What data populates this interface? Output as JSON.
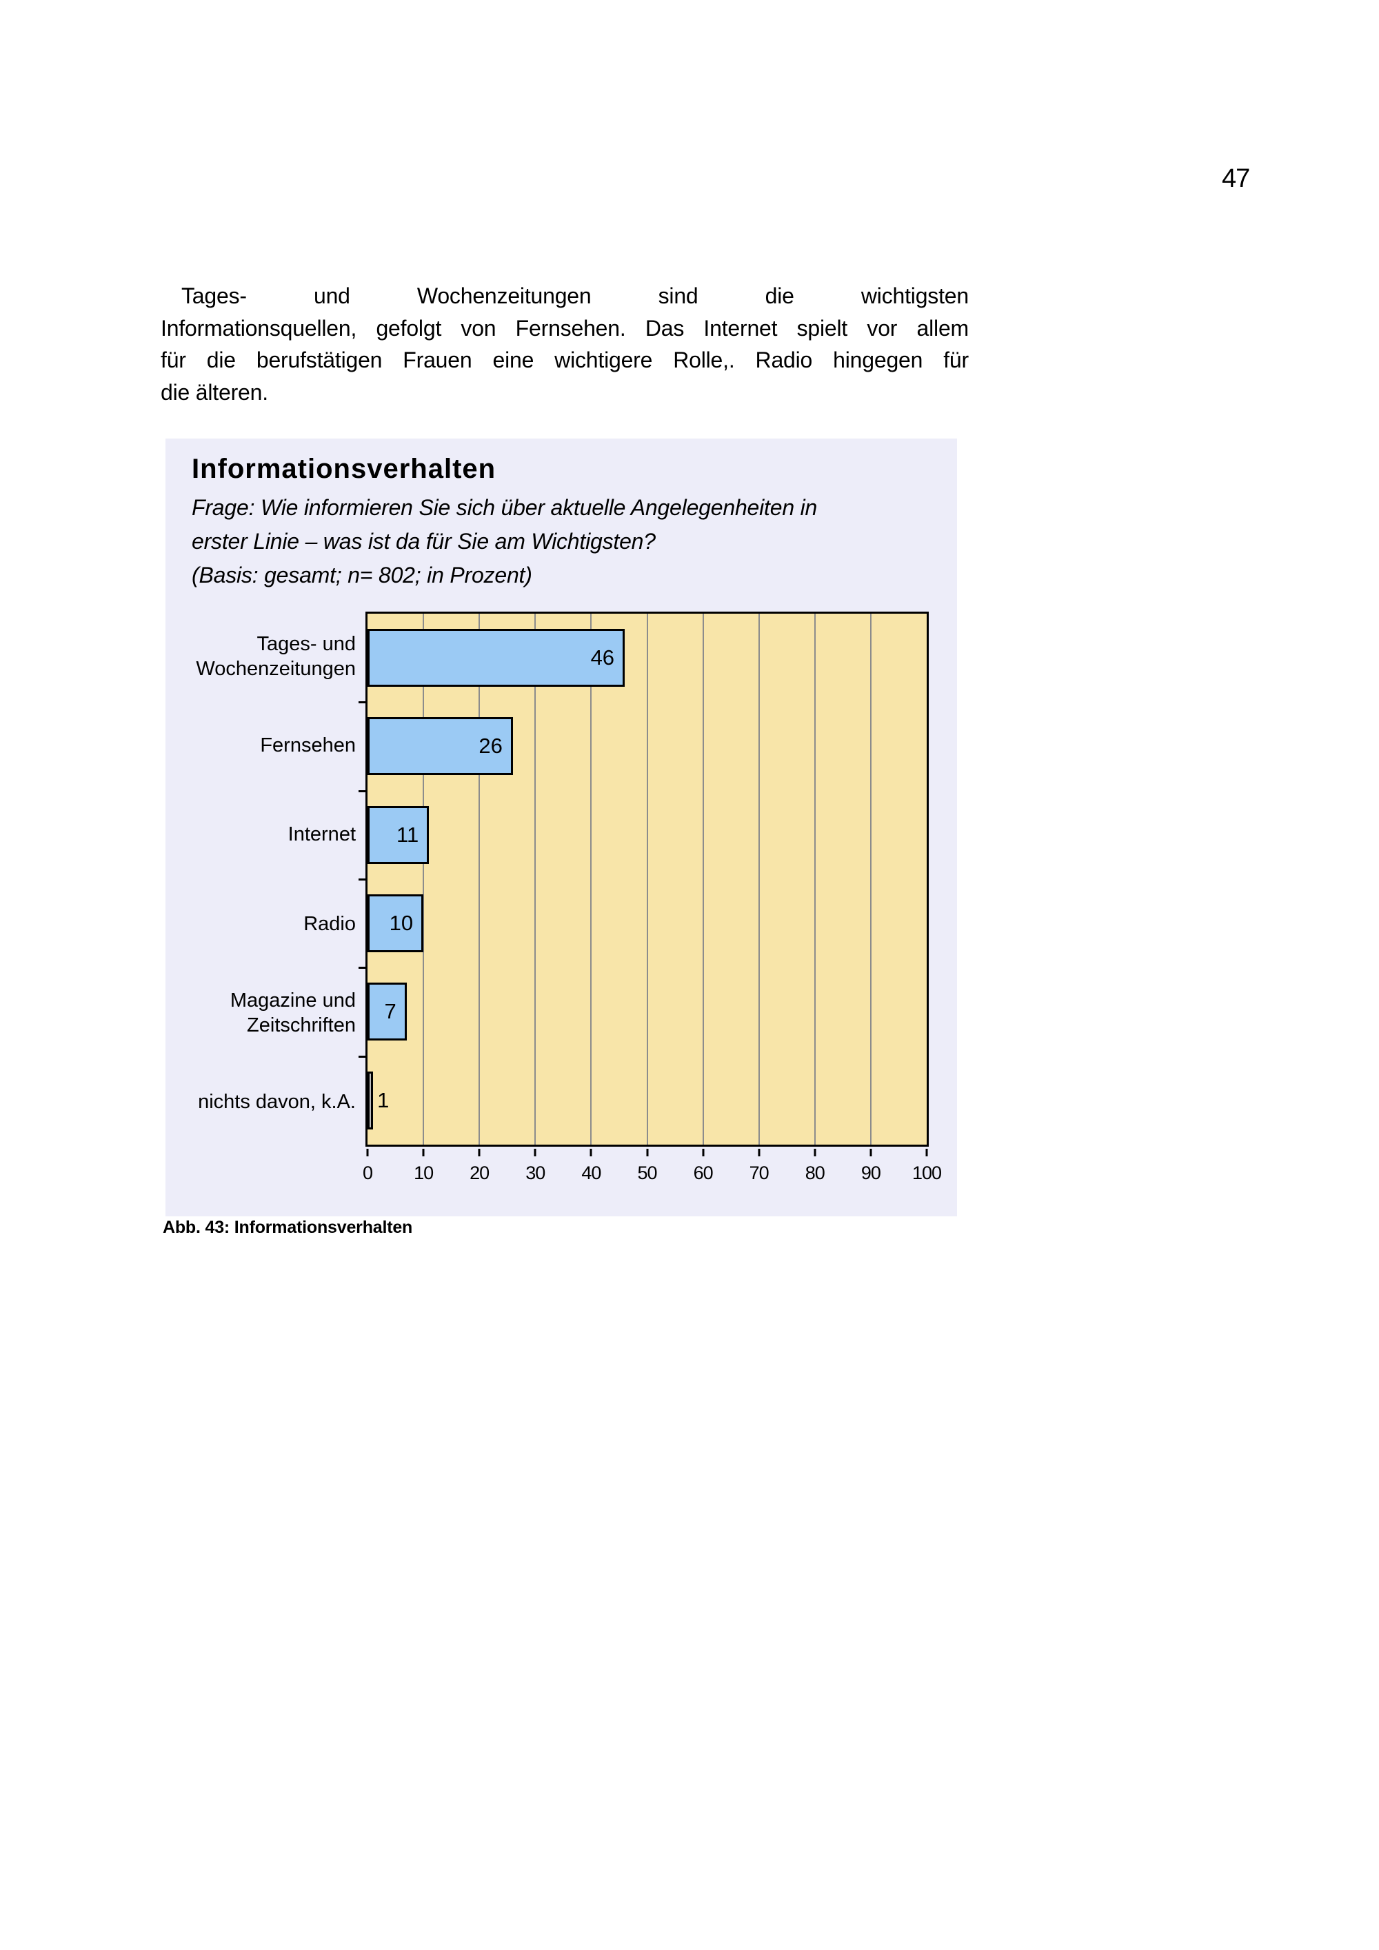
{
  "page": {
    "number": "47"
  },
  "paragraph": {
    "lines": [
      "Tages- und Wochenzeitungen sind die wichtigsten",
      "Informationsquellen, gefolgt von Fernsehen. Das Internet spielt vor allem",
      "für die berufstätigen Frauen eine wichtigere Rolle,. Radio hingegen für",
      "die älteren."
    ]
  },
  "figure": {
    "caption": "Abb. 43: Informationsverhalten"
  },
  "chart_data": {
    "type": "bar",
    "orientation": "horizontal",
    "title": "Informationsverhalten",
    "question_lines": [
      "Frage: Wie informieren Sie sich über aktuelle Angelegenheiten in",
      "erster Linie – was ist da für Sie am Wichtigsten?",
      "(Basis: gesamt; n= 802; in Prozent)"
    ],
    "categories": [
      "Tages- und\nWochenzeitungen",
      "Fernsehen",
      "Internet",
      "Radio",
      "Magazine und\nZeitschriften",
      "nichts davon, k.A."
    ],
    "values": [
      46,
      26,
      11,
      10,
      7,
      1
    ],
    "xlabel": "",
    "ylabel": "",
    "xlim": [
      0,
      100
    ],
    "xticks": [
      0,
      10,
      20,
      30,
      40,
      50,
      60,
      70,
      80,
      90,
      100
    ],
    "grid": true,
    "legend": false,
    "colors": {
      "bar": "#9BCAF4",
      "last_bar": "#C0C0C0",
      "plot_bg": "#F8E5A9",
      "panel_bg": "#EDEDF9",
      "grid": "#8C8C8C"
    }
  }
}
